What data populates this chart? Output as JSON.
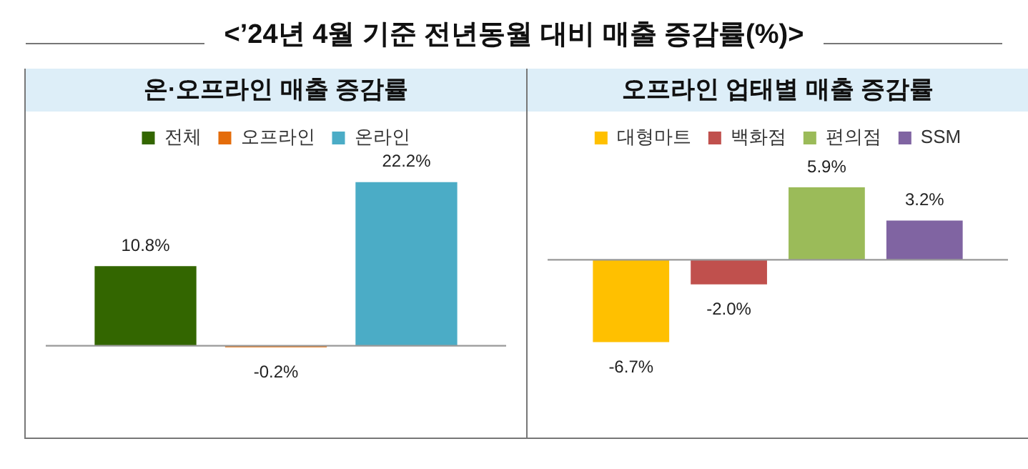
{
  "chart_data": [
    {
      "type": "bar",
      "title": "<’24년 4월 기준 전년동월 대비 매출 증감률(%)>",
      "subtitle": "온·오프라인 매출 증감률",
      "categories": [
        null
      ],
      "legend": "top",
      "grid": false,
      "series": [
        {
          "name": "전체",
          "color": "#336600",
          "values": [
            10.8
          ],
          "value_labels": [
            "10.8%"
          ]
        },
        {
          "name": "오프라인",
          "color": "#e46c0a",
          "values": [
            -0.2
          ],
          "value_labels": [
            "-0.2%"
          ]
        },
        {
          "name": "온라인",
          "color": "#4bacc6",
          "values": [
            22.2
          ],
          "value_labels": [
            "22.2%"
          ]
        }
      ]
    },
    {
      "type": "bar",
      "subtitle": "오프라인 업태별 매출 증감률",
      "categories": [
        null
      ],
      "legend": "top",
      "grid": false,
      "series": [
        {
          "name": "대형마트",
          "color": "#ffc000",
          "values": [
            -6.7
          ],
          "value_labels": [
            "-6.7%"
          ]
        },
        {
          "name": "백화점",
          "color": "#c0504d",
          "values": [
            -2.0
          ],
          "value_labels": [
            "-2.0%"
          ]
        },
        {
          "name": "편의점",
          "color": "#9bbb59",
          "values": [
            5.9
          ],
          "value_labels": [
            "5.9%"
          ]
        },
        {
          "name": "SSM",
          "color": "#8064a2",
          "values": [
            3.2
          ],
          "value_labels": [
            "3.2%"
          ]
        }
      ]
    }
  ]
}
